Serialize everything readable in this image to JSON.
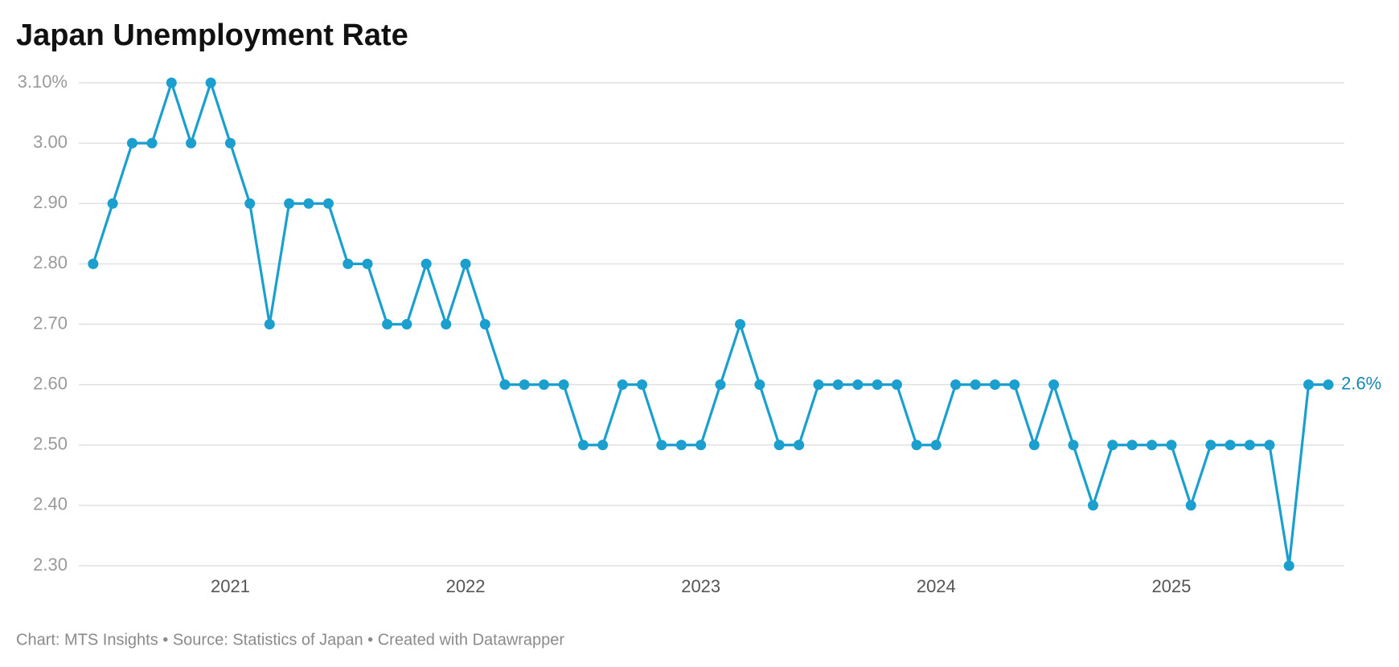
{
  "chart_data": {
    "type": "line",
    "title": "Japan Unemployment Rate",
    "footer": "Chart: MTS Insights • Source: Statistics of Japan • Created with Datawrapper",
    "x": [
      2020.417,
      2020.5,
      2020.583,
      2020.667,
      2020.75,
      2020.833,
      2020.917,
      2021.0,
      2021.083,
      2021.167,
      2021.25,
      2021.333,
      2021.417,
      2021.5,
      2021.583,
      2021.667,
      2021.75,
      2021.833,
      2021.917,
      2022.0,
      2022.083,
      2022.167,
      2022.25,
      2022.333,
      2022.417,
      2022.5,
      2022.583,
      2022.667,
      2022.75,
      2022.833,
      2022.917,
      2023.0,
      2023.083,
      2023.167,
      2023.25,
      2023.333,
      2023.417,
      2023.5,
      2023.583,
      2023.667,
      2023.75,
      2023.833,
      2023.917,
      2024.0,
      2024.083,
      2024.167,
      2024.25,
      2024.333,
      2024.417,
      2024.5,
      2024.583,
      2024.667,
      2024.75,
      2024.833,
      2024.917,
      2025.0,
      2025.083,
      2025.167,
      2025.25,
      2025.333,
      2025.417,
      2025.5,
      2025.583,
      2025.667
    ],
    "series": [
      {
        "color": "#1a9fce",
        "label_color": "#1788ad",
        "values": [
          2.8,
          2.9,
          3.0,
          3.0,
          3.1,
          3.0,
          3.1,
          3.0,
          2.9,
          2.7,
          2.9,
          2.9,
          2.9,
          2.8,
          2.8,
          2.7,
          2.7,
          2.8,
          2.7,
          2.8,
          2.7,
          2.6,
          2.6,
          2.6,
          2.6,
          2.5,
          2.5,
          2.6,
          2.6,
          2.5,
          2.5,
          2.5,
          2.6,
          2.7,
          2.6,
          2.5,
          2.5,
          2.6,
          2.6,
          2.6,
          2.6,
          2.6,
          2.5,
          2.5,
          2.6,
          2.6,
          2.6,
          2.6,
          2.5,
          2.6,
          2.5,
          2.4,
          2.5,
          2.5,
          2.5,
          2.5,
          2.4,
          2.5,
          2.5,
          2.5,
          2.5,
          2.3,
          2.6,
          2.6
        ],
        "value_labels": [
          null,
          null,
          null,
          null,
          null,
          null,
          null,
          null,
          null,
          null,
          null,
          null,
          null,
          null,
          null,
          null,
          null,
          null,
          null,
          null,
          null,
          null,
          null,
          null,
          null,
          null,
          null,
          null,
          null,
          null,
          null,
          null,
          null,
          null,
          null,
          null,
          null,
          null,
          null,
          null,
          null,
          null,
          null,
          null,
          null,
          null,
          null,
          null,
          null,
          null,
          null,
          null,
          null,
          null,
          null,
          null,
          null,
          null,
          null,
          null,
          null,
          null,
          null,
          "2.6%"
        ]
      }
    ],
    "xlim": [
      2020.356,
      2025.735
    ],
    "xticks": [
      2021,
      2022,
      2023,
      2024,
      2025
    ],
    "ylim": [
      2.3,
      3.1
    ],
    "yticks": [
      {
        "value": 2.3,
        "label": "2.30"
      },
      {
        "value": 2.4,
        "label": "2.40"
      },
      {
        "value": 2.5,
        "label": "2.50"
      },
      {
        "value": 2.6,
        "label": "2.60"
      },
      {
        "value": 2.7,
        "label": "2.70"
      },
      {
        "value": 2.8,
        "label": "2.80"
      },
      {
        "value": 2.9,
        "label": "2.90"
      },
      {
        "value": 3.0,
        "label": "3.00"
      },
      {
        "value": 3.1,
        "label": "3.10%"
      }
    ],
    "grid": true
  }
}
